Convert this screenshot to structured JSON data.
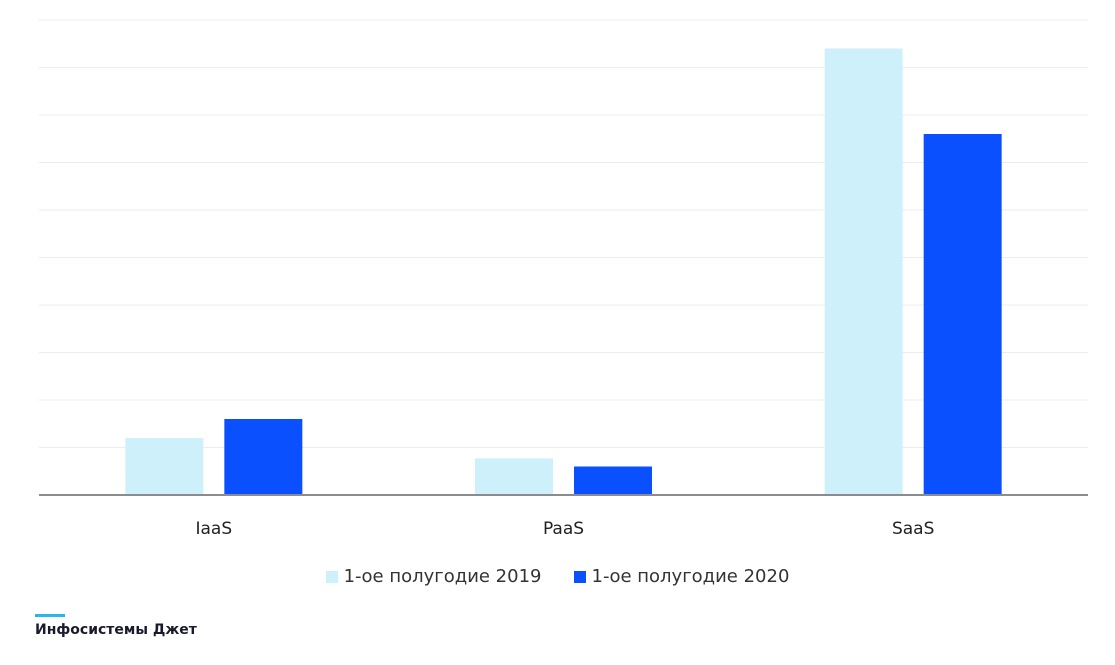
{
  "chart_data": {
    "type": "bar",
    "categories": [
      "IaaS",
      "PaaS",
      "SaaS"
    ],
    "series": [
      {
        "name": "1-ое полугодие 2019",
        "values": [
          12,
          7.7,
          94
        ]
      },
      {
        "name": "1-ое полугодие 2020",
        "values": [
          16,
          6,
          76
        ]
      }
    ],
    "ylim": [
      0,
      100
    ],
    "grid": true,
    "legend_position": "bottom",
    "colors": [
      "#cdf0fb",
      "#0a50ff"
    ]
  },
  "brand": {
    "name": "Инфосистемы Джет",
    "accent_color": "#29b6ea"
  }
}
